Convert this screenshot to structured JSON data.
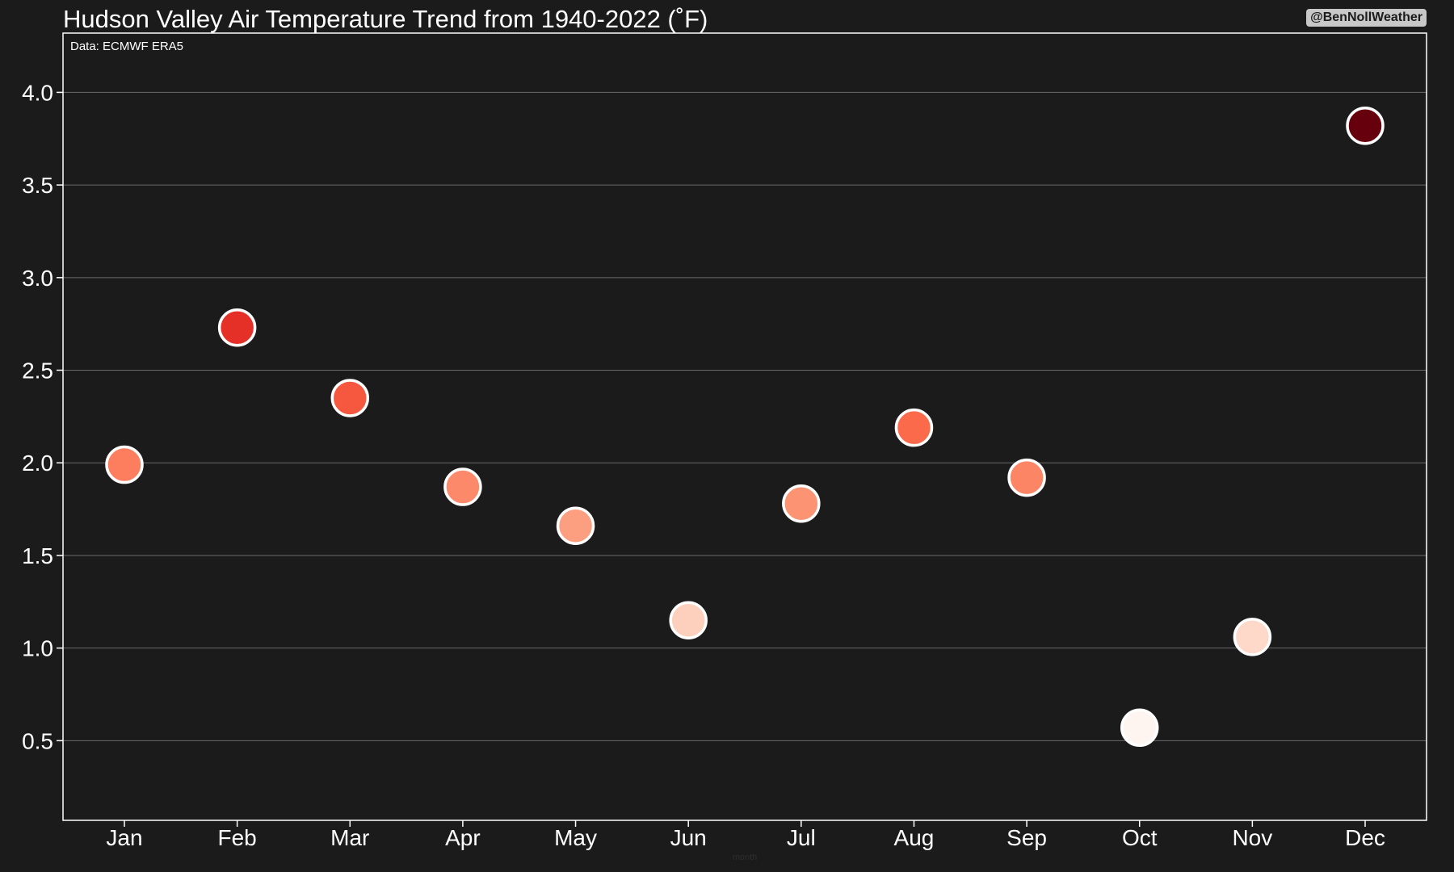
{
  "chart_data": {
    "type": "scatter",
    "title": "Hudson Valley Air Temperature Trend from 1940-2022 (˚F)",
    "source_note": "Data: ECMWF ERA5",
    "credit": "@BenNollWeather",
    "xlabel": "month",
    "ylabel": "",
    "categories": [
      "Jan",
      "Feb",
      "Mar",
      "Apr",
      "May",
      "Jun",
      "Jul",
      "Aug",
      "Sep",
      "Oct",
      "Nov",
      "Dec"
    ],
    "values": [
      1.99,
      2.73,
      2.35,
      1.87,
      1.66,
      1.15,
      1.78,
      2.19,
      1.92,
      0.57,
      1.06,
      3.82
    ],
    "ylim": [
      0.07,
      4.32
    ],
    "yticks": [
      "0.5",
      "1.0",
      "1.5",
      "2.0",
      "2.5",
      "3.0",
      "3.5",
      "4.0"
    ],
    "grid": true,
    "colormap": "Reds",
    "background_color": "#1b1b1b",
    "marker_edge_color": "#ffffff"
  }
}
